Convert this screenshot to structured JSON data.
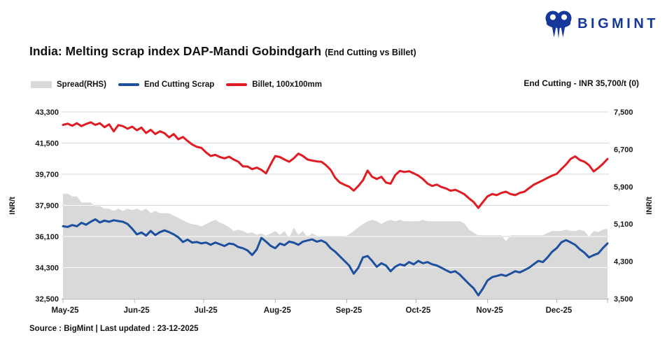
{
  "logo": {
    "text": "BIGMINT",
    "color": "#16389b"
  },
  "title": {
    "main": "India: Melting scrap index DAP-Mandi Gobindgarh",
    "suffix": "(End Cutting vs Billet)"
  },
  "legend": {
    "items": [
      {
        "label": "Spread(RHS)",
        "swatch": "area",
        "color": "#d9d9d9"
      },
      {
        "label": "End Cutting Scrap",
        "swatch": "line",
        "color": "#1c4f9d"
      },
      {
        "label": "Billet, 100x100mm",
        "swatch": "line",
        "color": "#e21b23"
      }
    ]
  },
  "annotation": {
    "text": "End Cutting - INR 35,700/t (0)"
  },
  "footer": {
    "text": "Source : BigMint | Last updated : 23-12-2025"
  },
  "chart_data": {
    "type": "line+area",
    "title": "India: Melting scrap index DAP-Mandi Gobindgarh (End Cutting vs Billet)",
    "x": {
      "unit": "days from 01-May-2025, sampled every 2 days",
      "labels": [
        "May-25",
        "Jun-25",
        "Jul-25",
        "Aug-25",
        "Sep-25",
        "Oct-25",
        "Nov-25",
        "Dec-25"
      ],
      "label_days": [
        0,
        31,
        61,
        92,
        123,
        153,
        184,
        214
      ],
      "total_days": 236,
      "sample_step_days": 2
    },
    "left_axis": {
      "title": "INR/t",
      "range": [
        32500,
        43300
      ],
      "tick_interval": 1800,
      "tick_values": [
        43300,
        41500,
        39700,
        37900,
        36100,
        34300,
        32500
      ],
      "tick_labels": [
        "43,300",
        "41,500",
        "39,700",
        "37,900",
        "36,100",
        "34,300",
        "32,500"
      ]
    },
    "right_axis": {
      "title": "INR/t",
      "range": [
        3500,
        7500
      ],
      "tick_interval": 800,
      "tick_values": [
        7500,
        6700,
        5900,
        5100,
        4300,
        3500
      ],
      "tick_labels": [
        "7,500",
        "6,700",
        "5,900",
        "5,100",
        "4,300",
        "3,500"
      ]
    },
    "grid": "horizontal gridlines at left-axis ticks",
    "legend_position": "top-left",
    "series": [
      {
        "name": "Spread(RHS)",
        "type": "area",
        "axis": "right",
        "color": "#d9d9d9",
        "values": [
          5750,
          5750,
          5690,
          5690,
          5560,
          5560,
          5560,
          5480,
          5480,
          5430,
          5430,
          5380,
          5430,
          5380,
          5430,
          5400,
          5430,
          5380,
          5430,
          5330,
          5380,
          5330,
          5330,
          5330,
          5280,
          5230,
          5180,
          5130,
          5100,
          5080,
          5050,
          5100,
          5150,
          5190,
          5130,
          5090,
          5030,
          4950,
          4980,
          4950,
          4900,
          4920,
          4870,
          4900,
          4850,
          4900,
          4950,
          4870,
          4950,
          4800,
          5020,
          4870,
          4950,
          4820,
          4900,
          4850,
          4830,
          4830,
          4830,
          4830,
          4830,
          4830,
          4880,
          4950,
          5030,
          5100,
          5160,
          5190,
          5160,
          5100,
          5160,
          5190,
          5160,
          5190,
          5160,
          5160,
          5160,
          5160,
          5190,
          5160,
          5160,
          5160,
          5160,
          5160,
          5160,
          5160,
          5160,
          5110,
          4980,
          4910,
          4860,
          4860,
          4860,
          4860,
          4860,
          4860,
          4730,
          4860,
          4860,
          4860,
          4860,
          4860,
          4860,
          4860,
          4860,
          4910,
          4950,
          4950,
          4950,
          4980,
          4950,
          4950,
          4980,
          4950,
          4830,
          4950,
          4930,
          4980,
          5000
        ]
      },
      {
        "name": "End Cutting Scrap",
        "type": "line",
        "axis": "left",
        "color": "#1c4f9d",
        "last_value": 35700,
        "values": [
          36690,
          36650,
          36760,
          36690,
          36890,
          36780,
          36950,
          37090,
          36910,
          37020,
          36950,
          37040,
          36990,
          36950,
          36820,
          36550,
          36220,
          36330,
          36150,
          36420,
          36180,
          36350,
          36450,
          36350,
          36220,
          36050,
          35780,
          35920,
          35750,
          35780,
          35700,
          35750,
          35620,
          35750,
          35650,
          35550,
          35690,
          35650,
          35490,
          35420,
          35290,
          35030,
          35350,
          36020,
          35800,
          35560,
          35420,
          35690,
          35600,
          35800,
          35740,
          35620,
          35800,
          35870,
          35930,
          35800,
          35870,
          35730,
          35420,
          35220,
          34950,
          34690,
          34420,
          33950,
          34290,
          34890,
          34970,
          34690,
          34350,
          34550,
          34420,
          34090,
          34350,
          34490,
          34420,
          34620,
          34490,
          34690,
          34550,
          34620,
          34490,
          34420,
          34290,
          34150,
          34020,
          34090,
          33890,
          33620,
          33350,
          33100,
          32700,
          33090,
          33560,
          33750,
          33820,
          33890,
          33820,
          33950,
          34090,
          34020,
          34150,
          34290,
          34490,
          34690,
          34620,
          34890,
          35220,
          35430,
          35760,
          35890,
          35760,
          35620,
          35360,
          35160,
          34890,
          35020,
          35120,
          35430,
          35700
        ]
      },
      {
        "name": "Billet, 100x100mm",
        "type": "line",
        "axis": "left",
        "color": "#e21b23",
        "values": [
          42550,
          42620,
          42500,
          42650,
          42480,
          42600,
          42700,
          42550,
          42650,
          42420,
          42580,
          42180,
          42540,
          42480,
          42330,
          42450,
          42240,
          42400,
          42080,
          42270,
          42020,
          42180,
          42070,
          41830,
          42020,
          41720,
          41850,
          41620,
          41420,
          41280,
          41220,
          40960,
          40750,
          40820,
          40690,
          40620,
          40710,
          40550,
          40420,
          40150,
          40150,
          39990,
          40080,
          39950,
          39750,
          40270,
          40750,
          40690,
          40550,
          40420,
          40620,
          40890,
          40750,
          40550,
          40490,
          40440,
          40420,
          40220,
          39950,
          39490,
          39220,
          39090,
          38980,
          38750,
          39020,
          39350,
          39910,
          39550,
          39420,
          39550,
          39220,
          39150,
          39650,
          39890,
          39830,
          39870,
          39750,
          39620,
          39420,
          39160,
          39020,
          39100,
          38960,
          38880,
          38740,
          38800,
          38680,
          38540,
          38300,
          38090,
          37750,
          38090,
          38420,
          38550,
          38490,
          38620,
          38690,
          38550,
          38490,
          38620,
          38690,
          38890,
          39090,
          39220,
          39350,
          39490,
          39620,
          39720,
          40000,
          40260,
          40580,
          40730,
          40520,
          40420,
          40220,
          39860,
          40060,
          40300,
          40580
        ]
      }
    ]
  }
}
